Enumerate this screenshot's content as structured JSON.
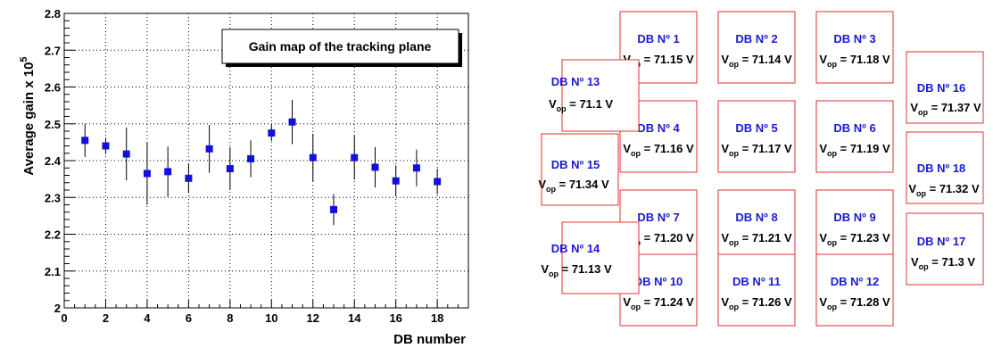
{
  "chart_data": {
    "type": "scatter",
    "title": "Gain map of the tracking plane",
    "xlabel": "DB number",
    "ylabel": "Average gain x 10",
    "ylabel_exponent": "5",
    "xlim": [
      0,
      19.5
    ],
    "ylim": [
      2.0,
      2.8
    ],
    "xticks": [
      "0",
      "2",
      "4",
      "6",
      "8",
      "10",
      "12",
      "14",
      "16",
      "18"
    ],
    "yticks": [
      "2",
      "2.1",
      "2.2",
      "2.3",
      "2.4",
      "2.5",
      "2.6",
      "2.7",
      "2.8"
    ],
    "grid": true,
    "points": [
      {
        "x": 1,
        "y": 2.455,
        "err": 0.045
      },
      {
        "x": 2,
        "y": 2.44,
        "err": 0.022
      },
      {
        "x": 3,
        "y": 2.418,
        "err": 0.072
      },
      {
        "x": 4,
        "y": 2.365,
        "err": 0.085
      },
      {
        "x": 5,
        "y": 2.37,
        "err": 0.068
      },
      {
        "x": 6,
        "y": 2.352,
        "err": 0.04
      },
      {
        "x": 7,
        "y": 2.432,
        "err": 0.065
      },
      {
        "x": 8,
        "y": 2.378,
        "err": 0.058
      },
      {
        "x": 9,
        "y": 2.405,
        "err": 0.05
      },
      {
        "x": 10,
        "y": 2.475,
        "err": 0.022
      },
      {
        "x": 11,
        "y": 2.505,
        "err": 0.06
      },
      {
        "x": 12,
        "y": 2.408,
        "err": 0.065
      },
      {
        "x": 13,
        "y": 2.267,
        "err": 0.042
      },
      {
        "x": 14,
        "y": 2.408,
        "err": 0.06
      },
      {
        "x": 15,
        "y": 2.382,
        "err": 0.055
      },
      {
        "x": 16,
        "y": 2.345,
        "err": 0.042
      },
      {
        "x": 17,
        "y": 2.38,
        "err": 0.05
      },
      {
        "x": 18,
        "y": 2.343,
        "err": 0.035
      }
    ],
    "marker_color": "#1010e0"
  },
  "tracking_plane": {
    "subscript": "op",
    "voltage_unit": "V",
    "boards": [
      {
        "id": 1,
        "title": "DB  Nº 1",
        "voltage": "71.15"
      },
      {
        "id": 2,
        "title": "DB  Nº 2",
        "voltage": "71.14"
      },
      {
        "id": 3,
        "title": "DB  Nº 3",
        "voltage": "71.18"
      },
      {
        "id": 4,
        "title": "DB  Nº 4",
        "voltage": "71.16"
      },
      {
        "id": 5,
        "title": "DB  Nº 5",
        "voltage": "71.17"
      },
      {
        "id": 6,
        "title": "DB  Nº 6",
        "voltage": "71.19"
      },
      {
        "id": 7,
        "title": "DB  Nº 7",
        "voltage": "71.20"
      },
      {
        "id": 8,
        "title": "DB  Nº 8",
        "voltage": "71.21"
      },
      {
        "id": 9,
        "title": "DB  Nº 9",
        "voltage": "71.23"
      },
      {
        "id": 10,
        "title": "DB  Nº 10",
        "voltage": "71.24"
      },
      {
        "id": 11,
        "title": "DB  Nº 11",
        "voltage": "71.26"
      },
      {
        "id": 12,
        "title": "DB  Nº 12",
        "voltage": "71.28"
      },
      {
        "id": 13,
        "title": "DB  Nº 13",
        "voltage": "71.1"
      },
      {
        "id": 14,
        "title": "DB  Nº 14",
        "voltage": "71.13"
      },
      {
        "id": 15,
        "title": "DB  Nº 15",
        "voltage": "71.34"
      },
      {
        "id": 16,
        "title": "DB  Nº 16",
        "voltage": "71.37"
      },
      {
        "id": 17,
        "title": "DB  Nº 17",
        "voltage": "71.3"
      },
      {
        "id": 18,
        "title": "DB  Nº 18",
        "voltage": "71.32"
      }
    ],
    "box_color": "#e03030"
  }
}
